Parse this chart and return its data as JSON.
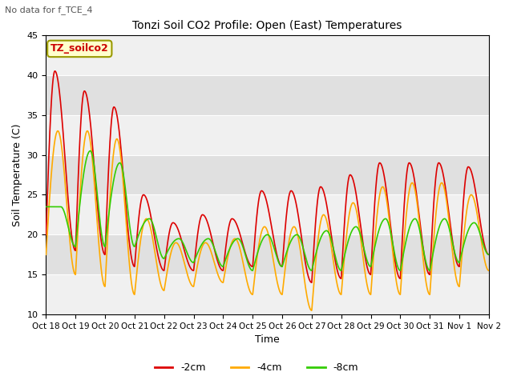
{
  "title": "Tonzi Soil CO2 Profile: Open (East) Temperatures",
  "subtitle": "No data for f_TCE_4",
  "xlabel": "Time",
  "ylabel": "Soil Temperature (C)",
  "ylim": [
    10,
    45
  ],
  "legend_title": "TZ_soilco2",
  "series_labels": [
    "-2cm",
    "-4cm",
    "-8cm"
  ],
  "series_colors": [
    "#dd0000",
    "#ffaa00",
    "#33cc00"
  ],
  "background_color": "#ffffff",
  "x_tick_labels": [
    "Oct 18",
    "Oct 19",
    "Oct 20",
    "Oct 21",
    "Oct 22",
    "Oct 23",
    "Oct 24",
    "Oct 25",
    "Oct 26",
    "Oct 27",
    "Oct 28",
    "Oct 29",
    "Oct 30",
    "Oct 31",
    "Nov 1",
    "Nov 2"
  ],
  "band_colors": [
    "#f0f0f0",
    "#e0e0e0"
  ],
  "band_ranges": [
    [
      10,
      15
    ],
    [
      15,
      20
    ],
    [
      20,
      25
    ],
    [
      25,
      30
    ],
    [
      30,
      35
    ],
    [
      35,
      40
    ],
    [
      40,
      45
    ]
  ]
}
